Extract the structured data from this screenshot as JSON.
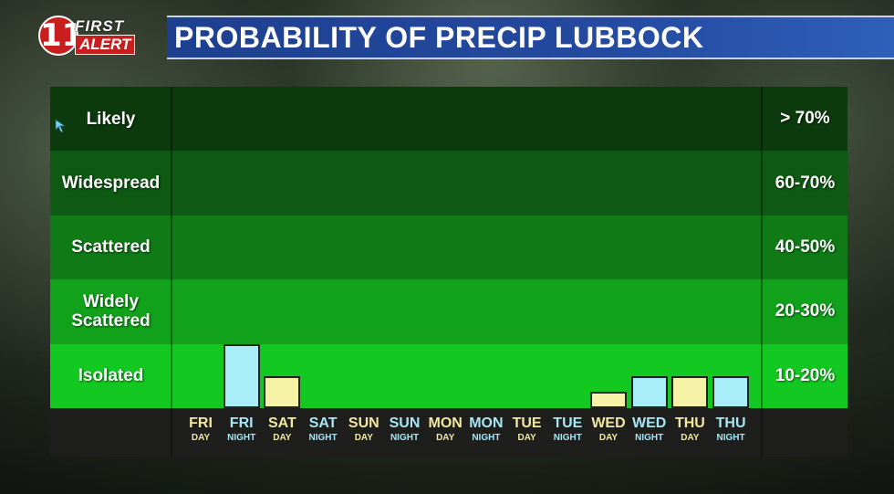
{
  "logo": {
    "number": "11",
    "first": "FIRST",
    "alert": "ALERT"
  },
  "title": "PROBABILITY OF PRECIP LUBBOCK",
  "colors": {
    "band_likely": "#0c3a0c",
    "band_widespread": "#0e5a12",
    "band_scattered": "#0f7a16",
    "band_widely": "#11a11b",
    "band_isolated": "#13c921",
    "day_bar": "#f6f2a6",
    "night_bar": "#a8eef8"
  },
  "chart_data": {
    "type": "bar",
    "title": "PROBABILITY OF PRECIP LUBBOCK",
    "bands": [
      {
        "label": "Likely",
        "range": "> 70%"
      },
      {
        "label": "Widespread",
        "range": "60-70%"
      },
      {
        "label": "Scattered",
        "range": "40-50%"
      },
      {
        "label": "Widely Scattered",
        "range": "20-30%"
      },
      {
        "label": "Isolated",
        "range": "10-20%"
      }
    ],
    "categories": [
      {
        "day": "FRI",
        "period": "DAY",
        "type": "day"
      },
      {
        "day": "FRI",
        "period": "NIGHT",
        "type": "night"
      },
      {
        "day": "SAT",
        "period": "DAY",
        "type": "day"
      },
      {
        "day": "SAT",
        "period": "NIGHT",
        "type": "night"
      },
      {
        "day": "SUN",
        "period": "DAY",
        "type": "day"
      },
      {
        "day": "SUN",
        "period": "NIGHT",
        "type": "night"
      },
      {
        "day": "MON",
        "period": "DAY",
        "type": "day"
      },
      {
        "day": "MON",
        "period": "NIGHT",
        "type": "night"
      },
      {
        "day": "TUE",
        "period": "DAY",
        "type": "day"
      },
      {
        "day": "TUE",
        "period": "NIGHT",
        "type": "night"
      },
      {
        "day": "WED",
        "period": "DAY",
        "type": "day"
      },
      {
        "day": "WED",
        "period": "NIGHT",
        "type": "night"
      },
      {
        "day": "THU",
        "period": "DAY",
        "type": "day"
      },
      {
        "day": "THU",
        "period": "NIGHT",
        "type": "night"
      }
    ],
    "values": [
      0,
      1.0,
      0.5,
      0,
      0,
      0,
      0,
      0,
      0,
      0,
      0.25,
      0.5,
      0.5,
      0.5
    ],
    "value_units": "fraction of the Isolated band height",
    "ylim": [
      0,
      5
    ]
  }
}
